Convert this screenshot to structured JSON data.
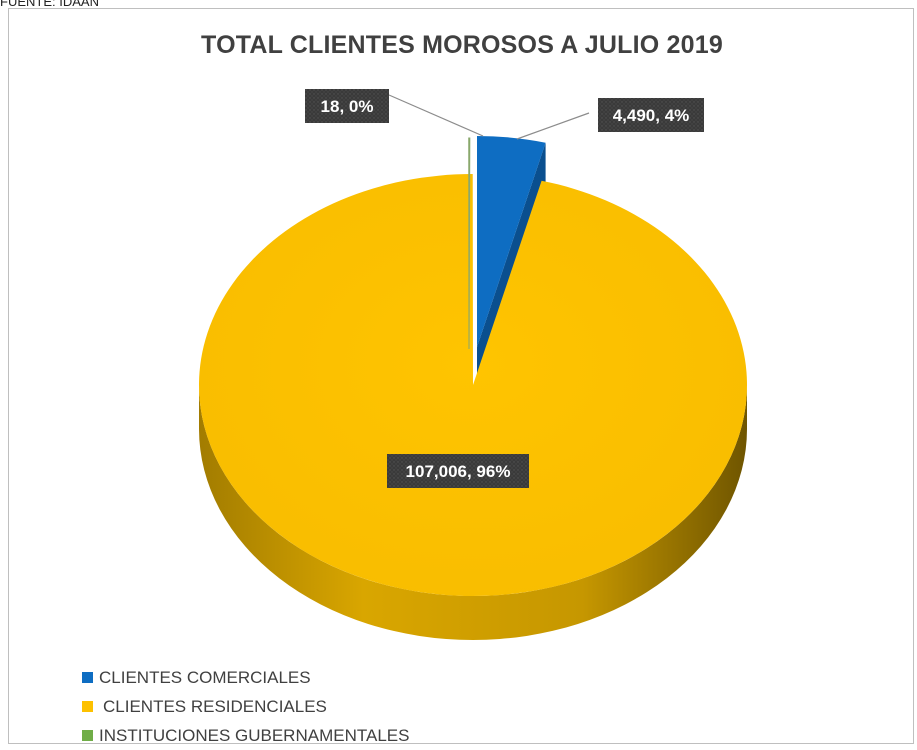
{
  "source": "FUENTE: IDAAN",
  "chart_data": {
    "type": "pie",
    "title": "TOTAL CLIENTES MOROSOS A JULIO 2019",
    "slices": [
      {
        "name": "CLIENTES COMERCIALES",
        "value": 4490,
        "label": "4,490, 4%",
        "color": "#0E6DC2"
      },
      {
        "name": "CLIENTES RESIDENCIALES",
        "value": 107006,
        "label": "107,006, 96%",
        "color": "#FDC100"
      },
      {
        "name": "INSTITUCIONES GUBERNAMENTALES",
        "value": 18,
        "label": "18, 0%",
        "color": "#70AD47"
      }
    ],
    "legend_position": "bottom-left",
    "style": "3d-exploded"
  }
}
